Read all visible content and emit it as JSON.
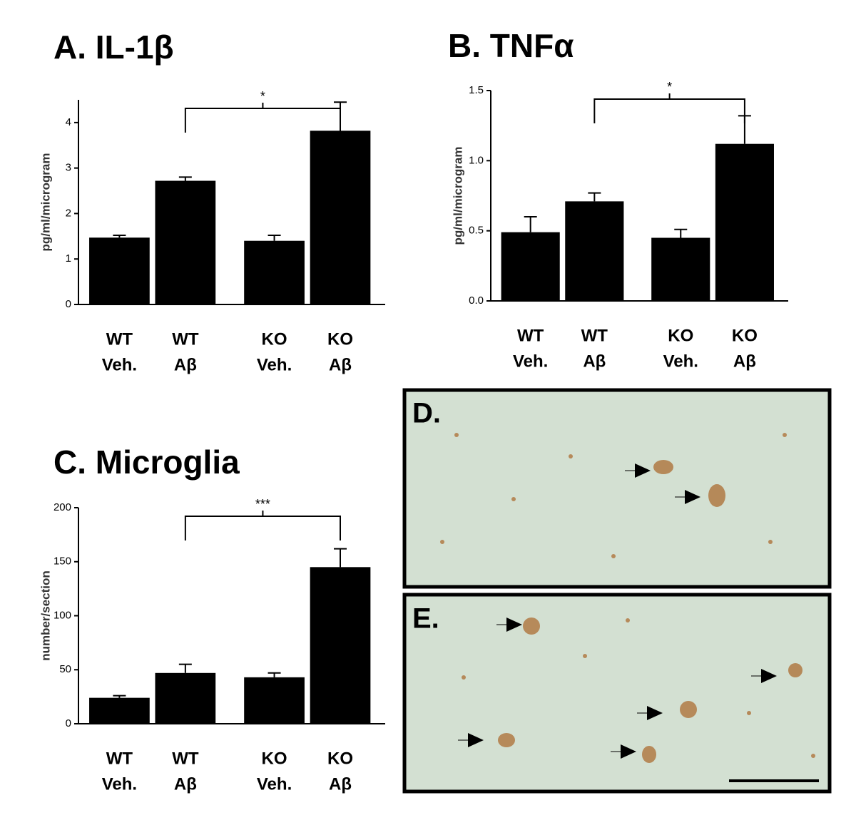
{
  "chart_data": [
    {
      "type": "bar",
      "title": "A.  IL-1β",
      "y_label": "pg/ml/microgram",
      "categories": [
        [
          "WT",
          "Veh."
        ],
        [
          "WT",
          "Aβ"
        ],
        [
          "KO",
          "Veh."
        ],
        [
          "KO",
          "Aβ"
        ]
      ],
      "values": [
        1.47,
        2.72,
        1.4,
        3.82
      ],
      "errors": [
        0.05,
        0.08,
        0.12,
        0.63
      ],
      "color": "#000000",
      "ylim": [
        0,
        4.5
      ],
      "yticks": [
        0,
        1,
        2,
        3,
        4
      ],
      "annotation": "*"
    },
    {
      "type": "bar",
      "title": "B.  TNFα",
      "y_label": "pg/ml/microgram",
      "categories": [
        [
          "WT",
          "Veh."
        ],
        [
          "WT",
          "Aβ"
        ],
        [
          "KO",
          "Veh."
        ],
        [
          "KO",
          "Aβ"
        ]
      ],
      "values": [
        0.49,
        0.71,
        0.45,
        1.12
      ],
      "errors": [
        0.11,
        0.06,
        0.06,
        0.2
      ],
      "color": "#000000",
      "ylim": [
        0,
        1.5
      ],
      "yticks": [
        {
          "value": 0,
          "label": "0.0"
        },
        0.5,
        {
          "value": 1,
          "label": "1.0"
        },
        1.5
      ],
      "annotation": "*"
    },
    {
      "type": "bar",
      "title": "C.  Microglia",
      "y_label": "number/section",
      "categories": [
        [
          "WT",
          "Veh."
        ],
        [
          "WT",
          "Aβ"
        ],
        [
          "KO",
          "Veh."
        ],
        [
          "KO",
          "Aβ"
        ]
      ],
      "values": [
        24,
        47,
        43,
        145
      ],
      "errors": [
        2,
        8,
        4,
        17
      ],
      "color": "#000000",
      "ylim": [
        0,
        200
      ],
      "yticks": [
        0,
        50,
        100,
        150,
        200
      ],
      "annotation": "***"
    }
  ],
  "panel_labels": [
    "D.",
    "E."
  ]
}
